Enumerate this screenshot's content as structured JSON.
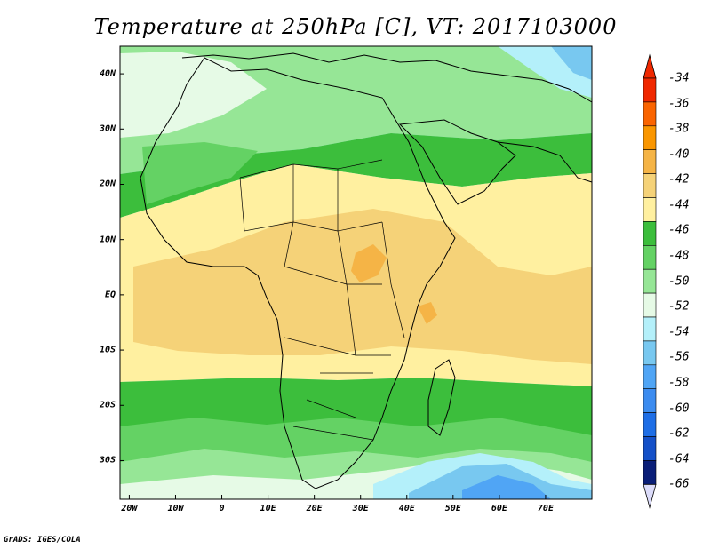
{
  "title": "Temperature at 250hPa [C], VT: 2017103000",
  "credit": "GrADS: IGES/COLA",
  "map": {
    "lon_range": [
      -22,
      80
    ],
    "lat_range": [
      -37,
      45
    ],
    "lon_ticks": [
      {
        "value": -20,
        "label": "20W"
      },
      {
        "value": -10,
        "label": "10W"
      },
      {
        "value": 0,
        "label": "0"
      },
      {
        "value": 10,
        "label": "10E"
      },
      {
        "value": 20,
        "label": "20E"
      },
      {
        "value": 30,
        "label": "30E"
      },
      {
        "value": 40,
        "label": "40E"
      },
      {
        "value": 50,
        "label": "50E"
      },
      {
        "value": 60,
        "label": "60E"
      },
      {
        "value": 70,
        "label": "70E"
      }
    ],
    "lat_ticks": [
      {
        "value": 40,
        "label": "40N"
      },
      {
        "value": 30,
        "label": "30N"
      },
      {
        "value": 20,
        "label": "20N"
      },
      {
        "value": 10,
        "label": "10N"
      },
      {
        "value": 0,
        "label": "EQ"
      },
      {
        "value": -10,
        "label": "10S"
      },
      {
        "value": -20,
        "label": "20S"
      },
      {
        "value": -30,
        "label": "30S"
      }
    ]
  },
  "legend": {
    "labels": [
      "-34",
      "-36",
      "-38",
      "-40",
      "-42",
      "-44",
      "-46",
      "-48",
      "-50",
      "-52",
      "-54",
      "-56",
      "-58",
      "-60",
      "-62",
      "-64",
      "-66"
    ],
    "colors": [
      "#f02800",
      "#fa6400",
      "#fa9600",
      "#f5b446",
      "#f5d278",
      "#fff0a0",
      "#3cbe3c",
      "#64d264",
      "#96e696",
      "#e6fae6",
      "#b4f0fa",
      "#78c8f0",
      "#50a5f5",
      "#3c8cf0",
      "#1e6ee6",
      "#1450c8",
      "#0a1e78"
    ],
    "over_color": "#f02800",
    "under_color": "#dcdcfa"
  }
}
